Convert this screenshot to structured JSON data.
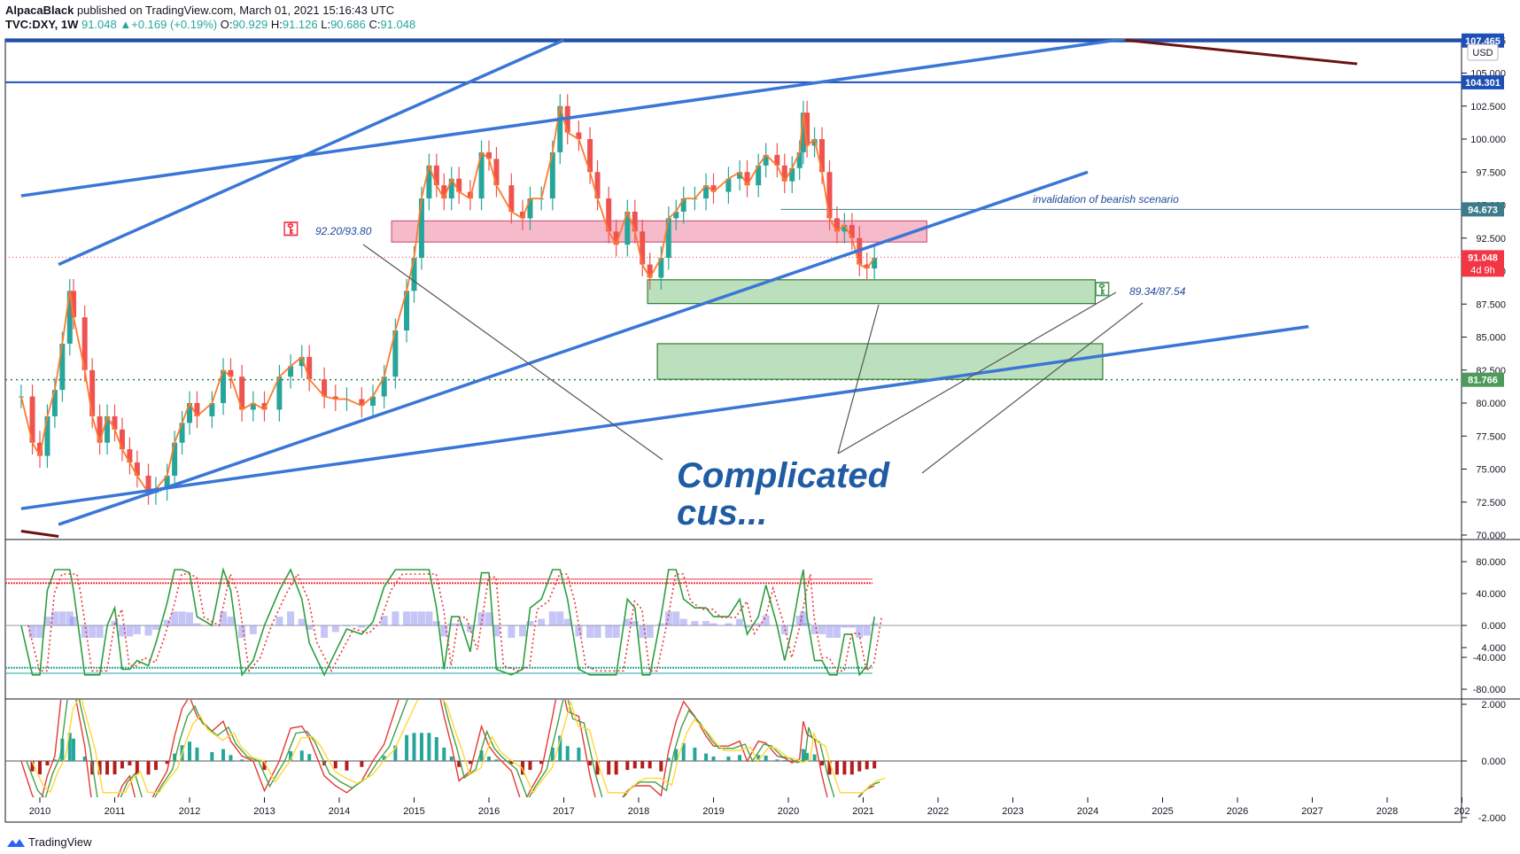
{
  "header": {
    "author": "AlpacaBlack",
    "published_on": "published on TradingView.com, March 01, 2021 15:16:43 UTC",
    "symbol": "TVC:DXY, 1W",
    "last": "91.048",
    "change": "+0.169 (+0.19%)",
    "o_label": "O:",
    "o": "90.929",
    "h_label": "H:",
    "h": "91.126",
    "l_label": "L:",
    "l": "90.686",
    "c_label": "C:",
    "c": "91.048"
  },
  "footer": {
    "brand": "TradingView"
  },
  "colors": {
    "trend_blue": "#3a76d6",
    "dark_red": "#6b1212",
    "resistance_zone": "#f2a4b9",
    "support_zone": "#a5d6a7",
    "price_up": "#26a69a",
    "price_down": "#ef5350",
    "ema": "#ff7a2d",
    "label_red": "#f23645",
    "label_blue": "#1f4a9c",
    "label_teal": "#3e7b8a",
    "label_green": "#4e9a5b"
  },
  "chart_data": [
    {
      "type": "line",
      "title": "",
      "x_axis": {
        "ticks": [
          "2010",
          "2011",
          "2012",
          "2013",
          "2014",
          "2015",
          "2016",
          "2017",
          "2018",
          "2019",
          "2020",
          "2021",
          "2022",
          "2023",
          "2024",
          "2025",
          "2026",
          "2027",
          "2028",
          "202"
        ]
      },
      "y_axis": {
        "currency": "USD",
        "ticks": [
          "70.000",
          "72.500",
          "75.000",
          "77.500",
          "80.000",
          "82.500",
          "85.000",
          "87.500",
          "90.000",
          "92.500",
          "95.000",
          "97.500",
          "100.000",
          "102.500",
          "105.000",
          "107.465"
        ],
        "range": [
          70,
          107.5
        ]
      },
      "series": [
        {
          "values": [
            [
              2009.75,
              80.5
            ],
            [
              2009.9,
              77.0
            ],
            [
              2010.0,
              76.0
            ],
            [
              2010.1,
              79.0
            ],
            [
              2010.2,
              81.0
            ],
            [
              2010.3,
              84.5
            ],
            [
              2010.4,
              88.5
            ],
            [
              2010.45,
              86.5
            ],
            [
              2010.6,
              82.5
            ],
            [
              2010.7,
              79.0
            ],
            [
              2010.8,
              77.0
            ],
            [
              2010.9,
              79.0
            ],
            [
              2011.0,
              78.0
            ],
            [
              2011.1,
              76.5
            ],
            [
              2011.2,
              75.5
            ],
            [
              2011.3,
              74.5
            ],
            [
              2011.45,
              73.2
            ],
            [
              2011.55,
              73.5
            ],
            [
              2011.7,
              74.5
            ],
            [
              2011.8,
              77.0
            ],
            [
              2011.9,
              78.5
            ],
            [
              2012.0,
              80.0
            ],
            [
              2012.1,
              79.0
            ],
            [
              2012.3,
              80.0
            ],
            [
              2012.45,
              82.5
            ],
            [
              2012.55,
              82.0
            ],
            [
              2012.7,
              79.5
            ],
            [
              2012.85,
              80.0
            ],
            [
              2013.0,
              79.5
            ],
            [
              2013.2,
              82.0
            ],
            [
              2013.35,
              82.8
            ],
            [
              2013.5,
              83.5
            ],
            [
              2013.6,
              81.8
            ],
            [
              2013.8,
              80.5
            ],
            [
              2013.95,
              80.3
            ],
            [
              2014.1,
              80.3
            ],
            [
              2014.3,
              79.8
            ],
            [
              2014.45,
              80.5
            ],
            [
              2014.6,
              82.0
            ],
            [
              2014.75,
              85.5
            ],
            [
              2014.9,
              88.5
            ],
            [
              2015.0,
              91.0
            ],
            [
              2015.1,
              95.5
            ],
            [
              2015.2,
              98.0
            ],
            [
              2015.3,
              96.5
            ],
            [
              2015.4,
              95.5
            ],
            [
              2015.5,
              97.0
            ],
            [
              2015.6,
              96.0
            ],
            [
              2015.75,
              95.5
            ],
            [
              2015.9,
              99.0
            ],
            [
              2016.0,
              98.5
            ],
            [
              2016.1,
              96.5
            ],
            [
              2016.3,
              94.5
            ],
            [
              2016.45,
              94.0
            ],
            [
              2016.55,
              95.5
            ],
            [
              2016.7,
              95.5
            ],
            [
              2016.85,
              99.0
            ],
            [
              2016.95,
              102.5
            ],
            [
              2017.05,
              100.5
            ],
            [
              2017.2,
              100.0
            ],
            [
              2017.35,
              97.5
            ],
            [
              2017.45,
              95.5
            ],
            [
              2017.6,
              93.0
            ],
            [
              2017.7,
              92.0
            ],
            [
              2017.85,
              94.5
            ],
            [
              2017.95,
              93.0
            ],
            [
              2018.05,
              90.5
            ],
            [
              2018.15,
              89.5
            ],
            [
              2018.3,
              91.0
            ],
            [
              2018.4,
              94.0
            ],
            [
              2018.5,
              94.5
            ],
            [
              2018.6,
              95.5
            ],
            [
              2018.75,
              95.5
            ],
            [
              2018.9,
              96.5
            ],
            [
              2019.0,
              96.0
            ],
            [
              2019.2,
              97.0
            ],
            [
              2019.35,
              97.5
            ],
            [
              2019.45,
              96.5
            ],
            [
              2019.6,
              98.0
            ],
            [
              2019.7,
              98.8
            ],
            [
              2019.85,
              98.0
            ],
            [
              2019.95,
              96.8
            ],
            [
              2020.05,
              97.8
            ],
            [
              2020.15,
              99.0
            ],
            [
              2020.2,
              102.0
            ],
            [
              2020.25,
              99.5
            ],
            [
              2020.35,
              100.0
            ],
            [
              2020.45,
              97.5
            ],
            [
              2020.55,
              94.0
            ],
            [
              2020.65,
              93.0
            ],
            [
              2020.75,
              93.5
            ],
            [
              2020.85,
              92.5
            ],
            [
              2020.95,
              90.5
            ],
            [
              2021.05,
              90.2
            ],
            [
              2021.15,
              91.0
            ]
          ]
        },
        {
          "values": [
            [
              2012.9,
              79.5
            ],
            [
              2014.6,
              80.2
            ],
            [
              2015.15,
              100.8
            ],
            [
              2016.25,
              95.0
            ],
            [
              2016.98,
              103.6
            ],
            [
              2018.12,
              88.2
            ],
            [
              2020.3,
              102.8
            ],
            [
              2021.0,
              89.2
            ]
          ]
        }
      ],
      "levels": [
        {
          "label": "107.465",
          "value": 107.465
        },
        {
          "label": "104.301",
          "value": 104.301
        },
        {
          "label": "94.673",
          "value": 94.673
        },
        {
          "label": "91.048",
          "value": 91.048,
          "countdown": "4d 9h"
        },
        {
          "label": "81.766",
          "value": 81.766
        }
      ],
      "zones": [
        {
          "label": "92.20/93.80",
          "from": 92.2,
          "to": 93.8,
          "x0": 2014.7,
          "x1": 2021.85
        },
        {
          "label": "89.34/87.54",
          "from": 87.54,
          "to": 89.34,
          "x0": 2018.12,
          "x1": 2024.1
        },
        {
          "from": 81.8,
          "to": 84.5,
          "x0": 2018.25,
          "x1": 2024.2
        }
      ],
      "trendlines": [
        {
          "from": [
            2009.75,
            95.7
          ],
          "to": [
            2024.5,
            107.6
          ]
        },
        {
          "from": [
            2010.25,
            90.5
          ],
          "to": [
            2017.0,
            107.5
          ]
        },
        {
          "from": [
            2010.25,
            70.8
          ],
          "to": [
            2024.0,
            97.5
          ]
        },
        {
          "from": [
            2009.75,
            72.0
          ],
          "to": [
            2026.95,
            85.8
          ]
        },
        {
          "from": [
            2024.5,
            107.5
          ],
          "to": [
            2027.6,
            105.7
          ]
        },
        {
          "from": [
            2009.75,
            70.3
          ],
          "to": [
            2010.25,
            69.9
          ]
        }
      ],
      "annotations": {
        "invalidation": "invalidation of bearish scenario",
        "big_text_1": "Complicated",
        "big_text_2": "cus..."
      }
    },
    {
      "type": "line",
      "title": "",
      "y_axis": {
        "ticks": [
          "80.000",
          "40.000",
          "0.000",
          "-40.000",
          "-80.000"
        ],
        "range": [
          -80,
          80
        ]
      },
      "levels": [
        {
          "value": 53
        },
        {
          "value": -53
        }
      ]
    },
    {
      "type": "bar",
      "title": "",
      "y_axis": {
        "ticks": [
          "4.000",
          "2.000",
          "0.000",
          "-2.000"
        ],
        "range": [
          -2.5,
          4.2
        ]
      }
    }
  ]
}
